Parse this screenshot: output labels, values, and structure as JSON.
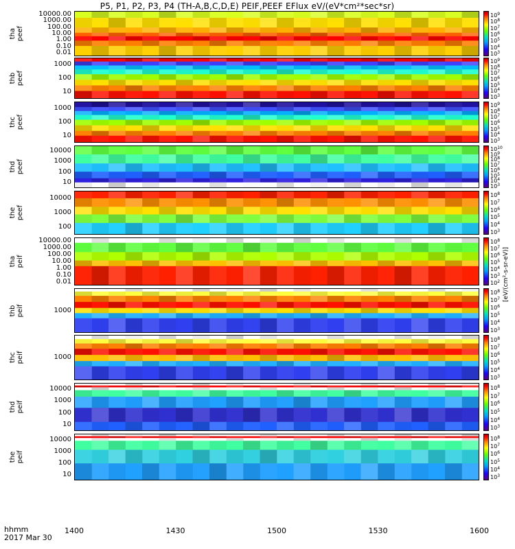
{
  "chart_data": {
    "type": "heatmap",
    "title": "P5, P1, P2, P3, P4 (TH-A,B,C,D,E) PEIF,PEEF EFlux eV/(eV*cm²*sec*sr)",
    "xlabel": [
      "hhmm",
      "2017 Mar 30"
    ],
    "x_range": [
      "1400",
      "1600"
    ],
    "x_ticks": [
      "1400",
      "1430",
      "1500",
      "1530",
      "1600"
    ],
    "colorbar_label": "[eV/(cm²-s-sr-eV)]",
    "colorscale": [
      "#5a0080",
      "#2000ff",
      "#00a0ff",
      "#00e0c0",
      "#60ff00",
      "#ffff00",
      "#ff8000",
      "#ff0000",
      "#b00000"
    ],
    "panels": [
      {
        "id": "tha_peef",
        "probe": "tha",
        "product": "peef",
        "yscale": "log",
        "y_ticks": [
          "10000.00",
          "1000.00",
          "100.00",
          "10.00",
          "1.00",
          "0.10",
          "0.01"
        ],
        "cbar_ticks": [
          "10^9",
          "10^8",
          "10^7",
          "10^6",
          "10^5",
          "10^4",
          "10^3"
        ],
        "bands": [
          {
            "frac": 0.14,
            "color": "#d8ff20"
          },
          {
            "frac": 0.22,
            "color": "#ffe000"
          },
          {
            "frac": 0.12,
            "color": "#ffb000"
          },
          {
            "frac": 0.08,
            "color": "#ff6000"
          },
          {
            "frac": 0.1,
            "color": "#ff0000"
          },
          {
            "frac": 0.12,
            "color": "#ff8000"
          },
          {
            "frac": 0.22,
            "color": "#ffd000"
          }
        ]
      },
      {
        "id": "thb_peef",
        "probe": "thb",
        "product": "peef",
        "yscale": "log",
        "y_ticks": [
          "1000",
          "100",
          "10"
        ],
        "cbar_ticks": [
          "10^9",
          "10^8",
          "10^7",
          "10^6",
          "10^5",
          "10^4",
          "10^3"
        ],
        "bands": [
          {
            "frac": 0.08,
            "color": "#ff0000"
          },
          {
            "frac": 0.1,
            "color": "#4040ff"
          },
          {
            "frac": 0.1,
            "color": "#00c0ff"
          },
          {
            "frac": 0.12,
            "color": "#20ffd0"
          },
          {
            "frac": 0.14,
            "color": "#a0ff00"
          },
          {
            "frac": 0.14,
            "color": "#ffe000"
          },
          {
            "frac": 0.14,
            "color": "#ff8000"
          },
          {
            "frac": 0.18,
            "color": "#ff1000"
          }
        ]
      },
      {
        "id": "thc_peef",
        "probe": "thc",
        "product": "peef",
        "yscale": "log",
        "y_ticks": [
          "1000",
          "100",
          "10"
        ],
        "cbar_ticks": [
          "10^9",
          "10^8",
          "10^7",
          "10^6",
          "10^5",
          "10^4",
          "10^3"
        ],
        "bands": [
          {
            "frac": 0.12,
            "color": "#2010a0"
          },
          {
            "frac": 0.1,
            "color": "#4050ff"
          },
          {
            "frac": 0.1,
            "color": "#00b0ff"
          },
          {
            "frac": 0.12,
            "color": "#20ffd0"
          },
          {
            "frac": 0.14,
            "color": "#a0ff00"
          },
          {
            "frac": 0.14,
            "color": "#ffe000"
          },
          {
            "frac": 0.12,
            "color": "#ff8000"
          },
          {
            "frac": 0.16,
            "color": "#ff1000"
          }
        ]
      },
      {
        "id": "thd_peef",
        "probe": "thd",
        "product": "peef",
        "yscale": "log",
        "y_ticks": [
          "10000",
          "1000",
          "100",
          "10"
        ],
        "cbar_ticks": [
          "10^10",
          "10^9",
          "10^8",
          "10^7",
          "10^6",
          "10^5",
          "10^4",
          "10^3"
        ],
        "bands": [
          {
            "frac": 0.2,
            "color": "#60ff40"
          },
          {
            "frac": 0.22,
            "color": "#40ffa0"
          },
          {
            "frac": 0.2,
            "color": "#20c0ff"
          },
          {
            "frac": 0.16,
            "color": "#2060ff"
          },
          {
            "frac": 0.1,
            "color": "#3020e0"
          },
          {
            "frac": 0.12,
            "color": "#ffffff"
          }
        ]
      },
      {
        "id": "the_peef",
        "probe": "the",
        "product": "peef",
        "yscale": "log",
        "y_ticks": [
          "10000",
          "1000",
          "100"
        ],
        "cbar_ticks": [
          "10^8",
          "10^7",
          "10^6",
          "10^5",
          "10^4",
          "10^3"
        ],
        "bands": [
          {
            "frac": 0.16,
            "color": "#ff2000"
          },
          {
            "frac": 0.2,
            "color": "#ff9000"
          },
          {
            "frac": 0.18,
            "color": "#ffe000"
          },
          {
            "frac": 0.2,
            "color": "#80ff40"
          },
          {
            "frac": 0.26,
            "color": "#20d0ff"
          }
        ]
      },
      {
        "id": "tha_peif",
        "probe": "tha",
        "product": "peif",
        "yscale": "log",
        "y_ticks": [
          "10000.00",
          "1000.00",
          "100.00",
          "10.00",
          "1.00",
          "0.10",
          "0.01"
        ],
        "cbar_ticks": [
          "10^8",
          "10^7",
          "10^6",
          "10^5",
          "10^4",
          "10^3",
          "10^2"
        ],
        "bands": [
          {
            "frac": 0.1,
            "color": "#ffffff"
          },
          {
            "frac": 0.2,
            "color": "#60ff40"
          },
          {
            "frac": 0.18,
            "color": "#b0ff00"
          },
          {
            "frac": 0.12,
            "color": "#ffc000"
          },
          {
            "frac": 0.4,
            "color": "#ff2000"
          }
        ]
      },
      {
        "id": "thb_peif",
        "probe": "thb",
        "product": "peif",
        "yscale": "log",
        "y_ticks": [
          "1000"
        ],
        "cbar_ticks": [
          "10^8",
          "10^7",
          "10^6",
          "10^5",
          "10^4",
          "10^3"
        ],
        "bands": [
          {
            "frac": 0.06,
            "color": "#ffffff"
          },
          {
            "frac": 0.1,
            "color": "#ffff40"
          },
          {
            "frac": 0.14,
            "color": "#ff8000"
          },
          {
            "frac": 0.14,
            "color": "#ff1000"
          },
          {
            "frac": 0.12,
            "color": "#ffe000"
          },
          {
            "frac": 0.12,
            "color": "#20b0ff"
          },
          {
            "frac": 0.32,
            "color": "#3040f0"
          }
        ]
      },
      {
        "id": "thc_peif",
        "probe": "thc",
        "product": "peif",
        "yscale": "log",
        "y_ticks": [
          "1000"
        ],
        "cbar_ticks": [
          "10^8",
          "10^7",
          "10^6",
          "10^5",
          "10^4",
          "10^3"
        ],
        "bands": [
          {
            "frac": 0.08,
            "color": "#ffffff"
          },
          {
            "frac": 0.1,
            "color": "#ffff40"
          },
          {
            "frac": 0.12,
            "color": "#ff8000"
          },
          {
            "frac": 0.14,
            "color": "#ff1000"
          },
          {
            "frac": 0.14,
            "color": "#ffc000"
          },
          {
            "frac": 0.12,
            "color": "#20b0ff"
          },
          {
            "frac": 0.3,
            "color": "#3040f0"
          }
        ]
      },
      {
        "id": "thd_peif",
        "probe": "thd",
        "product": "peif",
        "yscale": "log",
        "y_ticks": [
          "10000",
          "1000",
          "100",
          "10"
        ],
        "cbar_ticks": [
          "10^8",
          "10^7",
          "10^6",
          "10^5",
          "10^4",
          "10^3"
        ],
        "bands": [
          {
            "frac": 0.04,
            "color": "#ffffff"
          },
          {
            "frac": 0.04,
            "color": "#ff0000"
          },
          {
            "frac": 0.06,
            "color": "#ffffff"
          },
          {
            "frac": 0.14,
            "color": "#40ffa0"
          },
          {
            "frac": 0.24,
            "color": "#20a0ff"
          },
          {
            "frac": 0.3,
            "color": "#3030d0"
          },
          {
            "frac": 0.18,
            "color": "#2060ff"
          }
        ]
      },
      {
        "id": "the_peif",
        "probe": "the",
        "product": "peif",
        "yscale": "log",
        "y_ticks": [
          "10000",
          "1000",
          "100",
          "10"
        ],
        "cbar_ticks": [
          "10^8",
          "10^7",
          "10^6",
          "10^5",
          "10^4",
          "10^3"
        ],
        "bands": [
          {
            "frac": 0.04,
            "color": "#ffffff"
          },
          {
            "frac": 0.04,
            "color": "#ff0000"
          },
          {
            "frac": 0.06,
            "color": "#ffffff"
          },
          {
            "frac": 0.2,
            "color": "#40ffa0"
          },
          {
            "frac": 0.3,
            "color": "#30d0e0"
          },
          {
            "frac": 0.36,
            "color": "#20a0ff"
          }
        ]
      }
    ]
  }
}
